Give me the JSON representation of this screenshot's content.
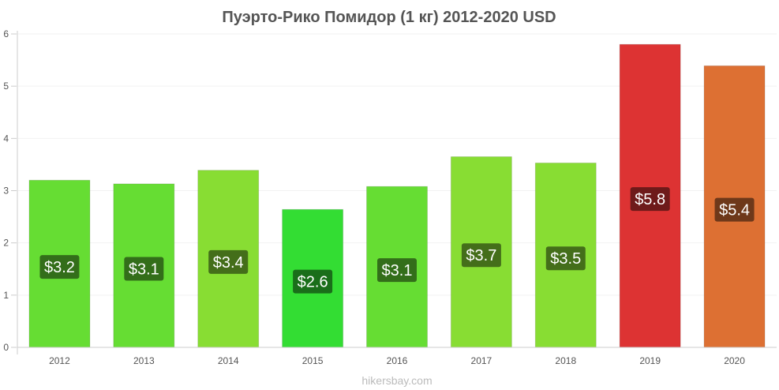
{
  "chart_data": {
    "type": "bar",
    "title": "Пуэрто-Рико Помидор (1 кг) 2012-2020 USD",
    "categories": [
      "2012",
      "2013",
      "2014",
      "2015",
      "2016",
      "2017",
      "2018",
      "2019",
      "2020"
    ],
    "values": [
      3.2,
      3.13,
      3.39,
      2.64,
      3.08,
      3.65,
      3.53,
      5.8,
      5.39
    ],
    "data_labels": [
      "$3.2",
      "$3.1",
      "$3.4",
      "$2.6",
      "$3.1",
      "$3.7",
      "$3.5",
      "$5.8",
      "$5.4"
    ],
    "bar_colors": [
      "#66dd33",
      "#66dd33",
      "#88dd33",
      "#33dd33",
      "#66dd33",
      "#88dd33",
      "#88dd33",
      "#dd3333",
      "#dd7033"
    ],
    "label_bg_colors": [
      "#336e1a",
      "#336e1a",
      "#446e1a",
      "#1a6e1a",
      "#336e1a",
      "#446e1a",
      "#446e1a",
      "#6e1a1a",
      "#6e381a"
    ],
    "ylim": [
      0,
      6
    ],
    "y_ticks": [
      "0",
      "1",
      "2",
      "3",
      "4",
      "5",
      "6"
    ],
    "grid": true,
    "xlabel": "",
    "ylabel": ""
  },
  "footer": {
    "credit": "hikersbay.com"
  }
}
